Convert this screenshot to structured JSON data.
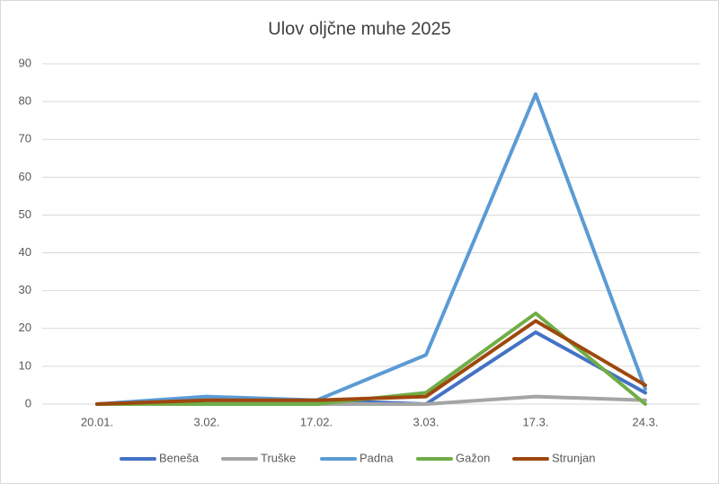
{
  "chart_data": {
    "type": "line",
    "title": "Ulov oljčne muhe 2025",
    "categories": [
      "20.01.",
      "3.02.",
      "17.02.",
      "3.03.",
      "17.3.",
      "24.3."
    ],
    "series": [
      {
        "name": "Beneša",
        "color": "#4472c4",
        "values": [
          0,
          1,
          1,
          0,
          19,
          3
        ]
      },
      {
        "name": "Truške",
        "color": "#a5a5a5",
        "values": [
          0,
          0,
          0,
          0,
          2,
          1
        ]
      },
      {
        "name": "Padna",
        "color": "#5b9bd5",
        "values": [
          0,
          2,
          1,
          13,
          82,
          4
        ]
      },
      {
        "name": "Gažon",
        "color": "#70ad47",
        "values": [
          0,
          0,
          0,
          3,
          24,
          0
        ]
      },
      {
        "name": "Strunjan",
        "color": "#9e480e",
        "values": [
          0,
          1,
          1,
          2,
          22,
          5
        ]
      }
    ],
    "ylim": [
      0,
      90
    ],
    "yticks": [
      0,
      10,
      20,
      30,
      40,
      50,
      60,
      70,
      80,
      90
    ],
    "grid": true,
    "legend": "bottom"
  }
}
